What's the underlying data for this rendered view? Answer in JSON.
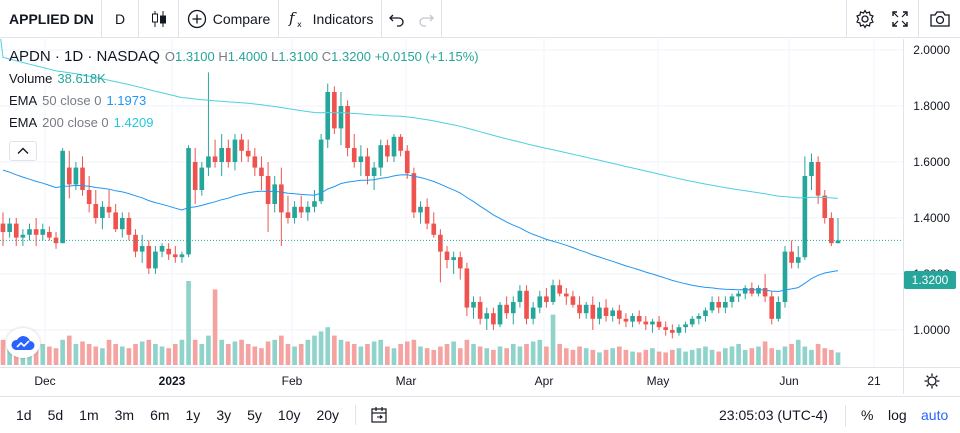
{
  "toolbar": {
    "symbol": "APPLIED DN",
    "interval": "D",
    "compare_label": "Compare",
    "indicators_label": "Indicators"
  },
  "legend": {
    "title": "APDN · 1D · NASDAQ",
    "ohlc": {
      "o_label": "O",
      "o": "1.3100",
      "h_label": "H",
      "h": "1.4000",
      "l_label": "L",
      "l": "1.3100",
      "c_label": "C",
      "c": "1.3200",
      "change": "+0.0150 (+1.15%)"
    },
    "volume": {
      "label": "Volume",
      "value": "38.618K"
    },
    "ema50": {
      "label": "EMA",
      "params": "50 close 0",
      "value": "1.1973"
    },
    "ema200": {
      "label": "EMA",
      "params": "200 close 0",
      "value": "1.4209"
    }
  },
  "price_axis": {
    "ticks": [
      "2.0000",
      "1.8000",
      "1.6000",
      "1.4000",
      "1.2000",
      "1.0000"
    ],
    "last_price": "1.3200"
  },
  "time_axis": {
    "ticks": [
      "Dec",
      "2023",
      "Feb",
      "Mar",
      "Apr",
      "May",
      "Jun",
      "21"
    ]
  },
  "bottom_bar": {
    "ranges": [
      "1d",
      "5d",
      "1m",
      "3m",
      "6m",
      "1y",
      "3y",
      "5y",
      "10y",
      "20y"
    ],
    "clock": "23:05:03 (UTC-4)",
    "percent": "%",
    "log": "log",
    "auto": "auto"
  },
  "colors": {
    "up": "#26a69a",
    "down": "#ef5350",
    "ema50": "#2196f3",
    "ema200": "#4dd0e1",
    "vol_up": "#8fd3cb",
    "vol_down": "#f5a3a1",
    "accent": "#2962ff"
  },
  "chart_data": {
    "type": "candlestick",
    "y_range": [
      0.9,
      2.05
    ],
    "candles": [
      [
        1.38,
        1.42,
        1.3,
        1.35
      ],
      [
        1.35,
        1.4,
        1.33,
        1.38
      ],
      [
        1.38,
        1.4,
        1.3,
        1.33
      ],
      [
        1.33,
        1.36,
        1.3,
        1.34
      ],
      [
        1.34,
        1.38,
        1.32,
        1.36
      ],
      [
        1.36,
        1.4,
        1.3,
        1.34
      ],
      [
        1.34,
        1.38,
        1.32,
        1.36
      ],
      [
        1.35,
        1.37,
        1.32,
        1.33
      ],
      [
        1.33,
        1.35,
        1.29,
        1.31
      ],
      [
        1.31,
        1.65,
        1.31,
        1.64
      ],
      [
        1.58,
        1.64,
        1.47,
        1.52
      ],
      [
        1.52,
        1.6,
        1.5,
        1.58
      ],
      [
        1.58,
        1.62,
        1.48,
        1.5
      ],
      [
        1.5,
        1.55,
        1.42,
        1.45
      ],
      [
        1.45,
        1.5,
        1.38,
        1.4
      ],
      [
        1.4,
        1.46,
        1.36,
        1.44
      ],
      [
        1.44,
        1.5,
        1.4,
        1.42
      ],
      [
        1.42,
        1.45,
        1.35,
        1.36
      ],
      [
        1.36,
        1.42,
        1.33,
        1.4
      ],
      [
        1.4,
        1.42,
        1.32,
        1.34
      ],
      [
        1.34,
        1.36,
        1.26,
        1.28
      ],
      [
        1.28,
        1.34,
        1.24,
        1.3
      ],
      [
        1.3,
        1.32,
        1.2,
        1.22
      ],
      [
        1.22,
        1.3,
        1.2,
        1.28
      ],
      [
        1.28,
        1.31,
        1.26,
        1.3
      ],
      [
        1.29,
        1.31,
        1.25,
        1.27
      ],
      [
        1.27,
        1.3,
        1.24,
        1.26
      ],
      [
        1.26,
        1.28,
        1.24,
        1.27
      ],
      [
        1.27,
        1.66,
        1.26,
        1.65
      ],
      [
        1.6,
        1.65,
        1.45,
        1.5
      ],
      [
        1.5,
        1.6,
        1.48,
        1.58
      ],
      [
        1.58,
        1.92,
        1.55,
        1.62
      ],
      [
        1.62,
        1.68,
        1.58,
        1.6
      ],
      [
        1.6,
        1.7,
        1.55,
        1.65
      ],
      [
        1.65,
        1.68,
        1.58,
        1.6
      ],
      [
        1.6,
        1.7,
        1.57,
        1.68
      ],
      [
        1.68,
        1.7,
        1.6,
        1.64
      ],
      [
        1.64,
        1.68,
        1.6,
        1.62
      ],
      [
        1.62,
        1.65,
        1.55,
        1.58
      ],
      [
        1.58,
        1.62,
        1.5,
        1.55
      ],
      [
        1.55,
        1.6,
        1.35,
        1.45
      ],
      [
        1.45,
        1.55,
        1.42,
        1.52
      ],
      [
        1.52,
        1.58,
        1.3,
        1.42
      ],
      [
        1.42,
        1.48,
        1.38,
        1.4
      ],
      [
        1.4,
        1.46,
        1.38,
        1.44
      ],
      [
        1.44,
        1.48,
        1.4,
        1.42
      ],
      [
        1.42,
        1.46,
        1.39,
        1.44
      ],
      [
        1.44,
        1.5,
        1.42,
        1.46
      ],
      [
        1.46,
        1.7,
        1.45,
        1.68
      ],
      [
        1.68,
        1.88,
        1.65,
        1.85
      ],
      [
        1.85,
        1.87,
        1.7,
        1.72
      ],
      [
        1.72,
        1.85,
        1.66,
        1.8
      ],
      [
        1.8,
        1.82,
        1.62,
        1.65
      ],
      [
        1.65,
        1.7,
        1.58,
        1.6
      ],
      [
        1.6,
        1.66,
        1.55,
        1.62
      ],
      [
        1.62,
        1.65,
        1.52,
        1.55
      ],
      [
        1.55,
        1.6,
        1.5,
        1.58
      ],
      [
        1.58,
        1.68,
        1.55,
        1.66
      ],
      [
        1.66,
        1.68,
        1.6,
        1.62
      ],
      [
        1.62,
        1.7,
        1.6,
        1.69
      ],
      [
        1.69,
        1.7,
        1.62,
        1.64
      ],
      [
        1.64,
        1.66,
        1.54,
        1.56
      ],
      [
        1.56,
        1.58,
        1.4,
        1.42
      ],
      [
        1.42,
        1.46,
        1.38,
        1.44
      ],
      [
        1.44,
        1.47,
        1.36,
        1.38
      ],
      [
        1.38,
        1.42,
        1.33,
        1.34
      ],
      [
        1.34,
        1.36,
        1.17,
        1.28
      ],
      [
        1.28,
        1.3,
        1.22,
        1.25
      ],
      [
        1.25,
        1.28,
        1.2,
        1.26
      ],
      [
        1.26,
        1.28,
        1.18,
        1.22
      ],
      [
        1.22,
        1.24,
        1.05,
        1.08
      ],
      [
        1.08,
        1.12,
        1.04,
        1.1
      ],
      [
        1.1,
        1.12,
        1.02,
        1.04
      ],
      [
        1.04,
        1.08,
        1.0,
        1.06
      ],
      [
        1.06,
        1.08,
        1.0,
        1.02
      ],
      [
        1.02,
        1.1,
        1.01,
        1.09
      ],
      [
        1.09,
        1.12,
        1.04,
        1.06
      ],
      [
        1.06,
        1.12,
        1.02,
        1.1
      ],
      [
        1.1,
        1.16,
        1.08,
        1.14
      ],
      [
        1.14,
        1.16,
        1.02,
        1.04
      ],
      [
        1.04,
        1.1,
        1.02,
        1.08
      ],
      [
        1.08,
        1.14,
        1.06,
        1.12
      ],
      [
        1.12,
        1.15,
        1.08,
        1.1
      ],
      [
        1.1,
        1.18,
        1.09,
        1.16
      ],
      [
        1.16,
        1.18,
        1.12,
        1.13
      ],
      [
        1.13,
        1.15,
        1.09,
        1.12
      ],
      [
        1.12,
        1.14,
        1.08,
        1.09
      ],
      [
        1.09,
        1.12,
        1.04,
        1.06
      ],
      [
        1.06,
        1.1,
        1.04,
        1.09
      ],
      [
        1.09,
        1.12,
        1.0,
        1.04
      ],
      [
        1.04,
        1.1,
        1.02,
        1.08
      ],
      [
        1.08,
        1.11,
        1.03,
        1.05
      ],
      [
        1.05,
        1.08,
        1.03,
        1.07
      ],
      [
        1.07,
        1.09,
        1.02,
        1.04
      ],
      [
        1.04,
        1.06,
        1.01,
        1.03
      ],
      [
        1.03,
        1.06,
        1.01,
        1.05
      ],
      [
        1.05,
        1.07,
        1.02,
        1.03
      ],
      [
        1.03,
        1.05,
        1.0,
        1.02
      ],
      [
        1.02,
        1.04,
        0.99,
        1.03
      ],
      [
        1.03,
        1.05,
        1.0,
        1.01
      ],
      [
        1.01,
        1.03,
        0.98,
        1.0
      ],
      [
        1.0,
        1.02,
        0.97,
        0.99
      ],
      [
        0.99,
        1.02,
        0.98,
        1.01
      ],
      [
        1.01,
        1.03,
        0.99,
        1.02
      ],
      [
        1.02,
        1.05,
        1.01,
        1.04
      ],
      [
        1.04,
        1.06,
        1.02,
        1.05
      ],
      [
        1.05,
        1.08,
        1.03,
        1.07
      ],
      [
        1.07,
        1.12,
        1.06,
        1.1
      ],
      [
        1.1,
        1.12,
        1.06,
        1.08
      ],
      [
        1.08,
        1.12,
        1.06,
        1.1
      ],
      [
        1.1,
        1.13,
        1.08,
        1.12
      ],
      [
        1.12,
        1.14,
        1.1,
        1.13
      ],
      [
        1.13,
        1.16,
        1.11,
        1.15
      ],
      [
        1.15,
        1.17,
        1.12,
        1.13
      ],
      [
        1.13,
        1.16,
        1.12,
        1.15
      ],
      [
        1.15,
        1.2,
        1.1,
        1.12
      ],
      [
        1.12,
        1.14,
        1.02,
        1.04
      ],
      [
        1.04,
        1.12,
        1.03,
        1.1
      ],
      [
        1.1,
        1.3,
        1.08,
        1.28
      ],
      [
        1.28,
        1.32,
        1.22,
        1.24
      ],
      [
        1.24,
        1.3,
        1.22,
        1.26
      ],
      [
        1.26,
        1.62,
        1.25,
        1.55
      ],
      [
        1.55,
        1.63,
        1.5,
        1.6
      ],
      [
        1.6,
        1.62,
        1.45,
        1.48
      ],
      [
        1.48,
        1.5,
        1.38,
        1.4
      ],
      [
        1.4,
        1.42,
        1.3,
        1.31
      ],
      [
        1.31,
        1.4,
        1.31,
        1.32
      ]
    ],
    "volumes": [
      0.3,
      0.22,
      0.25,
      0.35,
      0.28,
      0.3,
      0.25,
      0.22,
      0.2,
      0.3,
      0.35,
      0.25,
      0.28,
      0.25,
      0.22,
      0.2,
      0.3,
      0.25,
      0.22,
      0.2,
      0.25,
      0.28,
      0.3,
      0.25,
      0.22,
      0.2,
      0.25,
      0.3,
      1.0,
      0.3,
      0.25,
      0.35,
      0.9,
      0.3,
      0.25,
      0.28,
      0.3,
      0.25,
      0.22,
      0.2,
      0.28,
      0.3,
      0.35,
      0.25,
      0.22,
      0.25,
      0.3,
      0.35,
      0.4,
      0.45,
      0.35,
      0.3,
      0.28,
      0.25,
      0.22,
      0.25,
      0.28,
      0.3,
      0.22,
      0.2,
      0.25,
      0.28,
      0.3,
      0.22,
      0.2,
      0.18,
      0.22,
      0.25,
      0.28,
      0.2,
      0.3,
      0.25,
      0.22,
      0.2,
      0.18,
      0.22,
      0.2,
      0.25,
      0.22,
      0.25,
      0.28,
      0.3,
      0.22,
      0.6,
      0.25,
      0.2,
      0.18,
      0.22,
      0.2,
      0.18,
      0.15,
      0.18,
      0.2,
      0.22,
      0.18,
      0.16,
      0.15,
      0.18,
      0.2,
      0.16,
      0.15,
      0.18,
      0.2,
      0.16,
      0.18,
      0.2,
      0.22,
      0.18,
      0.16,
      0.2,
      0.22,
      0.25,
      0.18,
      0.2,
      0.22,
      0.28,
      0.2,
      0.18,
      0.22,
      0.25,
      0.3,
      0.22,
      0.18,
      0.25,
      0.2,
      0.18,
      0.15
    ]
  }
}
